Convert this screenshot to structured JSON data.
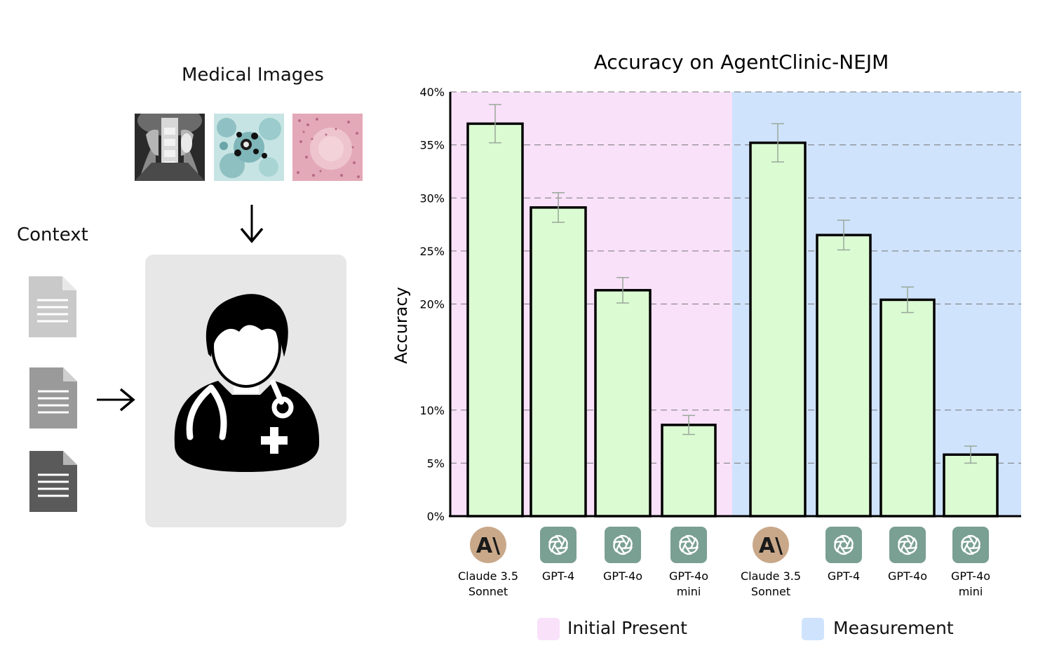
{
  "left_panel": {
    "medical_images_title": "Medical Images",
    "context_title": "Context"
  },
  "chart_data": {
    "type": "bar",
    "title": "Accuracy on AgentClinic-NEJM",
    "xlabel": "",
    "ylabel": "Accuracy",
    "ylim": [
      0,
      40
    ],
    "yticks": [
      "0%",
      "5%",
      "10%",
      "20%",
      "25%",
      "30%",
      "35%",
      "40%"
    ],
    "grid": true,
    "legend_placement": "bottom",
    "groups": [
      {
        "name": "Initial Present",
        "color": "#f9e1fa",
        "bars": [
          {
            "label": "Claude 3.5\nSonnet",
            "icon": "anthropic-logo-icon",
            "value": 37.0,
            "err": 1.8
          },
          {
            "label": "GPT-4",
            "icon": "openai-logo-icon",
            "value": 29.1,
            "err": 1.4
          },
          {
            "label": "GPT-4o",
            "icon": "openai-logo-icon",
            "value": 21.3,
            "err": 1.2
          },
          {
            "label": "GPT-4o\nmini",
            "icon": "openai-logo-icon",
            "value": 8.6,
            "err": 0.9
          }
        ]
      },
      {
        "name": "Measurement",
        "color": "#cfe3fd",
        "bars": [
          {
            "label": "Claude 3.5\nSonnet",
            "icon": "anthropic-logo-icon",
            "value": 35.2,
            "err": 1.8
          },
          {
            "label": "GPT-4",
            "icon": "openai-logo-icon",
            "value": 26.5,
            "err": 1.4
          },
          {
            "label": "GPT-4o",
            "icon": "openai-logo-icon",
            "value": 20.4,
            "err": 1.2
          },
          {
            "label": "GPT-4o\nmini",
            "icon": "openai-logo-icon",
            "value": 5.8,
            "err": 0.8
          }
        ]
      }
    ],
    "bar_color": "#dbfbd3",
    "bar_edge_color": "#000000"
  },
  "colors": {
    "doc_light": "#c9c9c9",
    "doc_mid": "#9a9a9a",
    "doc_dark": "#5a5a5a",
    "panel_bg": "#e7e7e7",
    "anthropic_logo_bg": "#c9a88a",
    "openai_logo_bg": "#7a9f93"
  }
}
